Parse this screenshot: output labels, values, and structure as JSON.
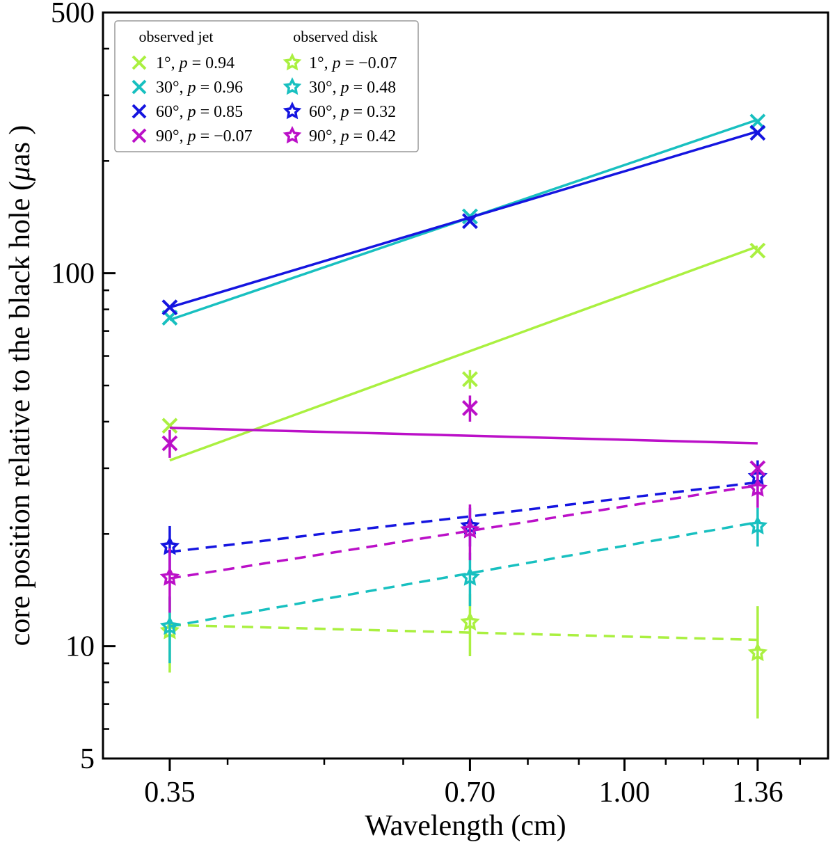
{
  "chart_data": {
    "type": "scatter",
    "title": "",
    "xlabel": "Wavelength (cm)",
    "ylabel_text": "core position relative to the black hole (",
    "ylabel_unit_mu": "μ",
    "ylabel_unit_rest": "as )",
    "x_scale": "log",
    "y_scale": "log",
    "xlim": [
      0.3,
      1.6
    ],
    "ylim": [
      5,
      500
    ],
    "x_ticks": [
      0.35,
      0.7,
      1.0,
      1.36
    ],
    "x_tick_labels": [
      "0.35",
      "0.70",
      "1.00",
      "1.36"
    ],
    "y_ticks": [
      5,
      10,
      100,
      500
    ],
    "y_tick_labels": [
      "5",
      "10",
      "100",
      "500"
    ],
    "grid": false,
    "legend_position": "top-left",
    "legend_titles": [
      "observed jet",
      "observed disk"
    ],
    "x": [
      0.35,
      0.7,
      1.36
    ],
    "jet_series": [
      {
        "angle": "1°",
        "p": "0.94",
        "color": "#aaf040",
        "values": [
          39,
          52,
          115
        ],
        "errors": [
          0,
          3,
          0
        ],
        "fit": [
          31.5,
          118
        ]
      },
      {
        "angle": "30°",
        "p": "0.96",
        "color": "#18c0c0",
        "values": [
          76,
          142,
          255
        ],
        "errors": [
          0,
          0,
          0
        ],
        "fit": [
          75,
          258
        ]
      },
      {
        "angle": "60°",
        "p": "0.85",
        "color": "#1515e0",
        "values": [
          81,
          138,
          238
        ],
        "errors": [
          0,
          0,
          0
        ],
        "fit": [
          81,
          240
        ]
      },
      {
        "angle": "90°",
        "p": "−0.07",
        "color": "#bb10c8",
        "values": [
          35,
          43.5,
          30
        ],
        "errors": [
          3,
          3.5,
          0
        ],
        "fit": [
          38.5,
          35
        ]
      }
    ],
    "disk_series": [
      {
        "angle": "1°",
        "p": "−0.07",
        "color": "#aaf040",
        "values": [
          11,
          11.6,
          9.6
        ],
        "errors": [
          2.5,
          2.2,
          3.2
        ],
        "fit": [
          11.4,
          10.4
        ]
      },
      {
        "angle": "30°",
        "p": "0.48",
        "color": "#18c0c0",
        "values": [
          11.3,
          15.3,
          21
        ],
        "errors": [
          2.3,
          2.5,
          2.5
        ],
        "fit": [
          11.3,
          21.5
        ]
      },
      {
        "angle": "60°",
        "p": "0.32",
        "color": "#1515e0",
        "values": [
          18.5,
          21,
          28.5
        ],
        "errors": [
          2.5,
          2.5,
          3.0
        ],
        "fit": [
          17.9,
          27.5
        ]
      },
      {
        "angle": "90°",
        "p": "0.42",
        "color": "#bb10c8",
        "values": [
          15.3,
          20.5,
          26.5
        ],
        "errors": [
          3.0,
          3.5,
          3.0
        ],
        "fit": [
          15.2,
          27
        ]
      }
    ]
  }
}
